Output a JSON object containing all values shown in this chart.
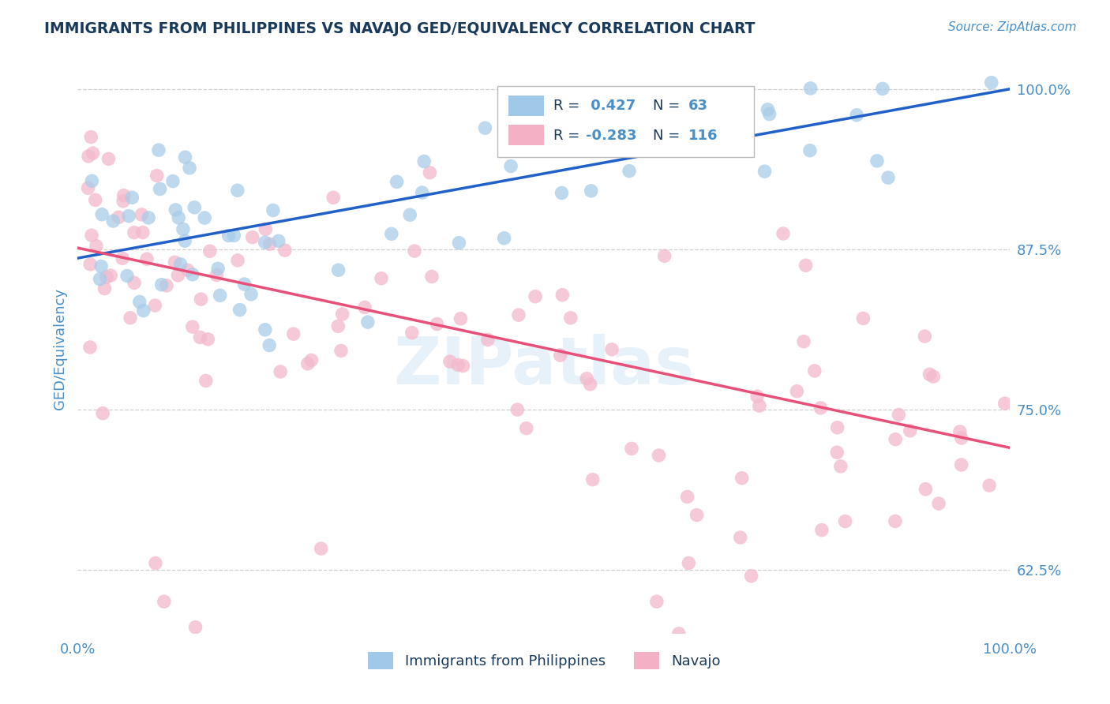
{
  "title": "IMMIGRANTS FROM PHILIPPINES VS NAVAJO GED/EQUIVALENCY CORRELATION CHART",
  "source": "Source: ZipAtlas.com",
  "ylabel": "GED/Equivalency",
  "x_min": 0.0,
  "x_max": 1.0,
  "y_min": 0.575,
  "y_max": 1.02,
  "y_ticks": [
    0.625,
    0.75,
    0.875,
    1.0
  ],
  "y_tick_labels": [
    "62.5%",
    "75.0%",
    "87.5%",
    "100.0%"
  ],
  "blue_R": 0.427,
  "blue_N": 63,
  "pink_R": -0.283,
  "pink_N": 116,
  "blue_scatter_color": "#a8cce8",
  "pink_scatter_color": "#f4b8cc",
  "blue_line_color": "#2060c8",
  "pink_line_color": "#e8507a",
  "title_color": "#1a3a5c",
  "axis_label_color": "#4a8fc8",
  "legend_color_blue": "#a0c8e8",
  "legend_color_pink": "#f4b0c4",
  "background_color": "#ffffff",
  "grid_color": "#d0d0d0",
  "blue_line_start_y": 0.868,
  "blue_line_end_y": 1.0,
  "pink_line_start_y": 0.876,
  "pink_line_end_y": 0.72
}
